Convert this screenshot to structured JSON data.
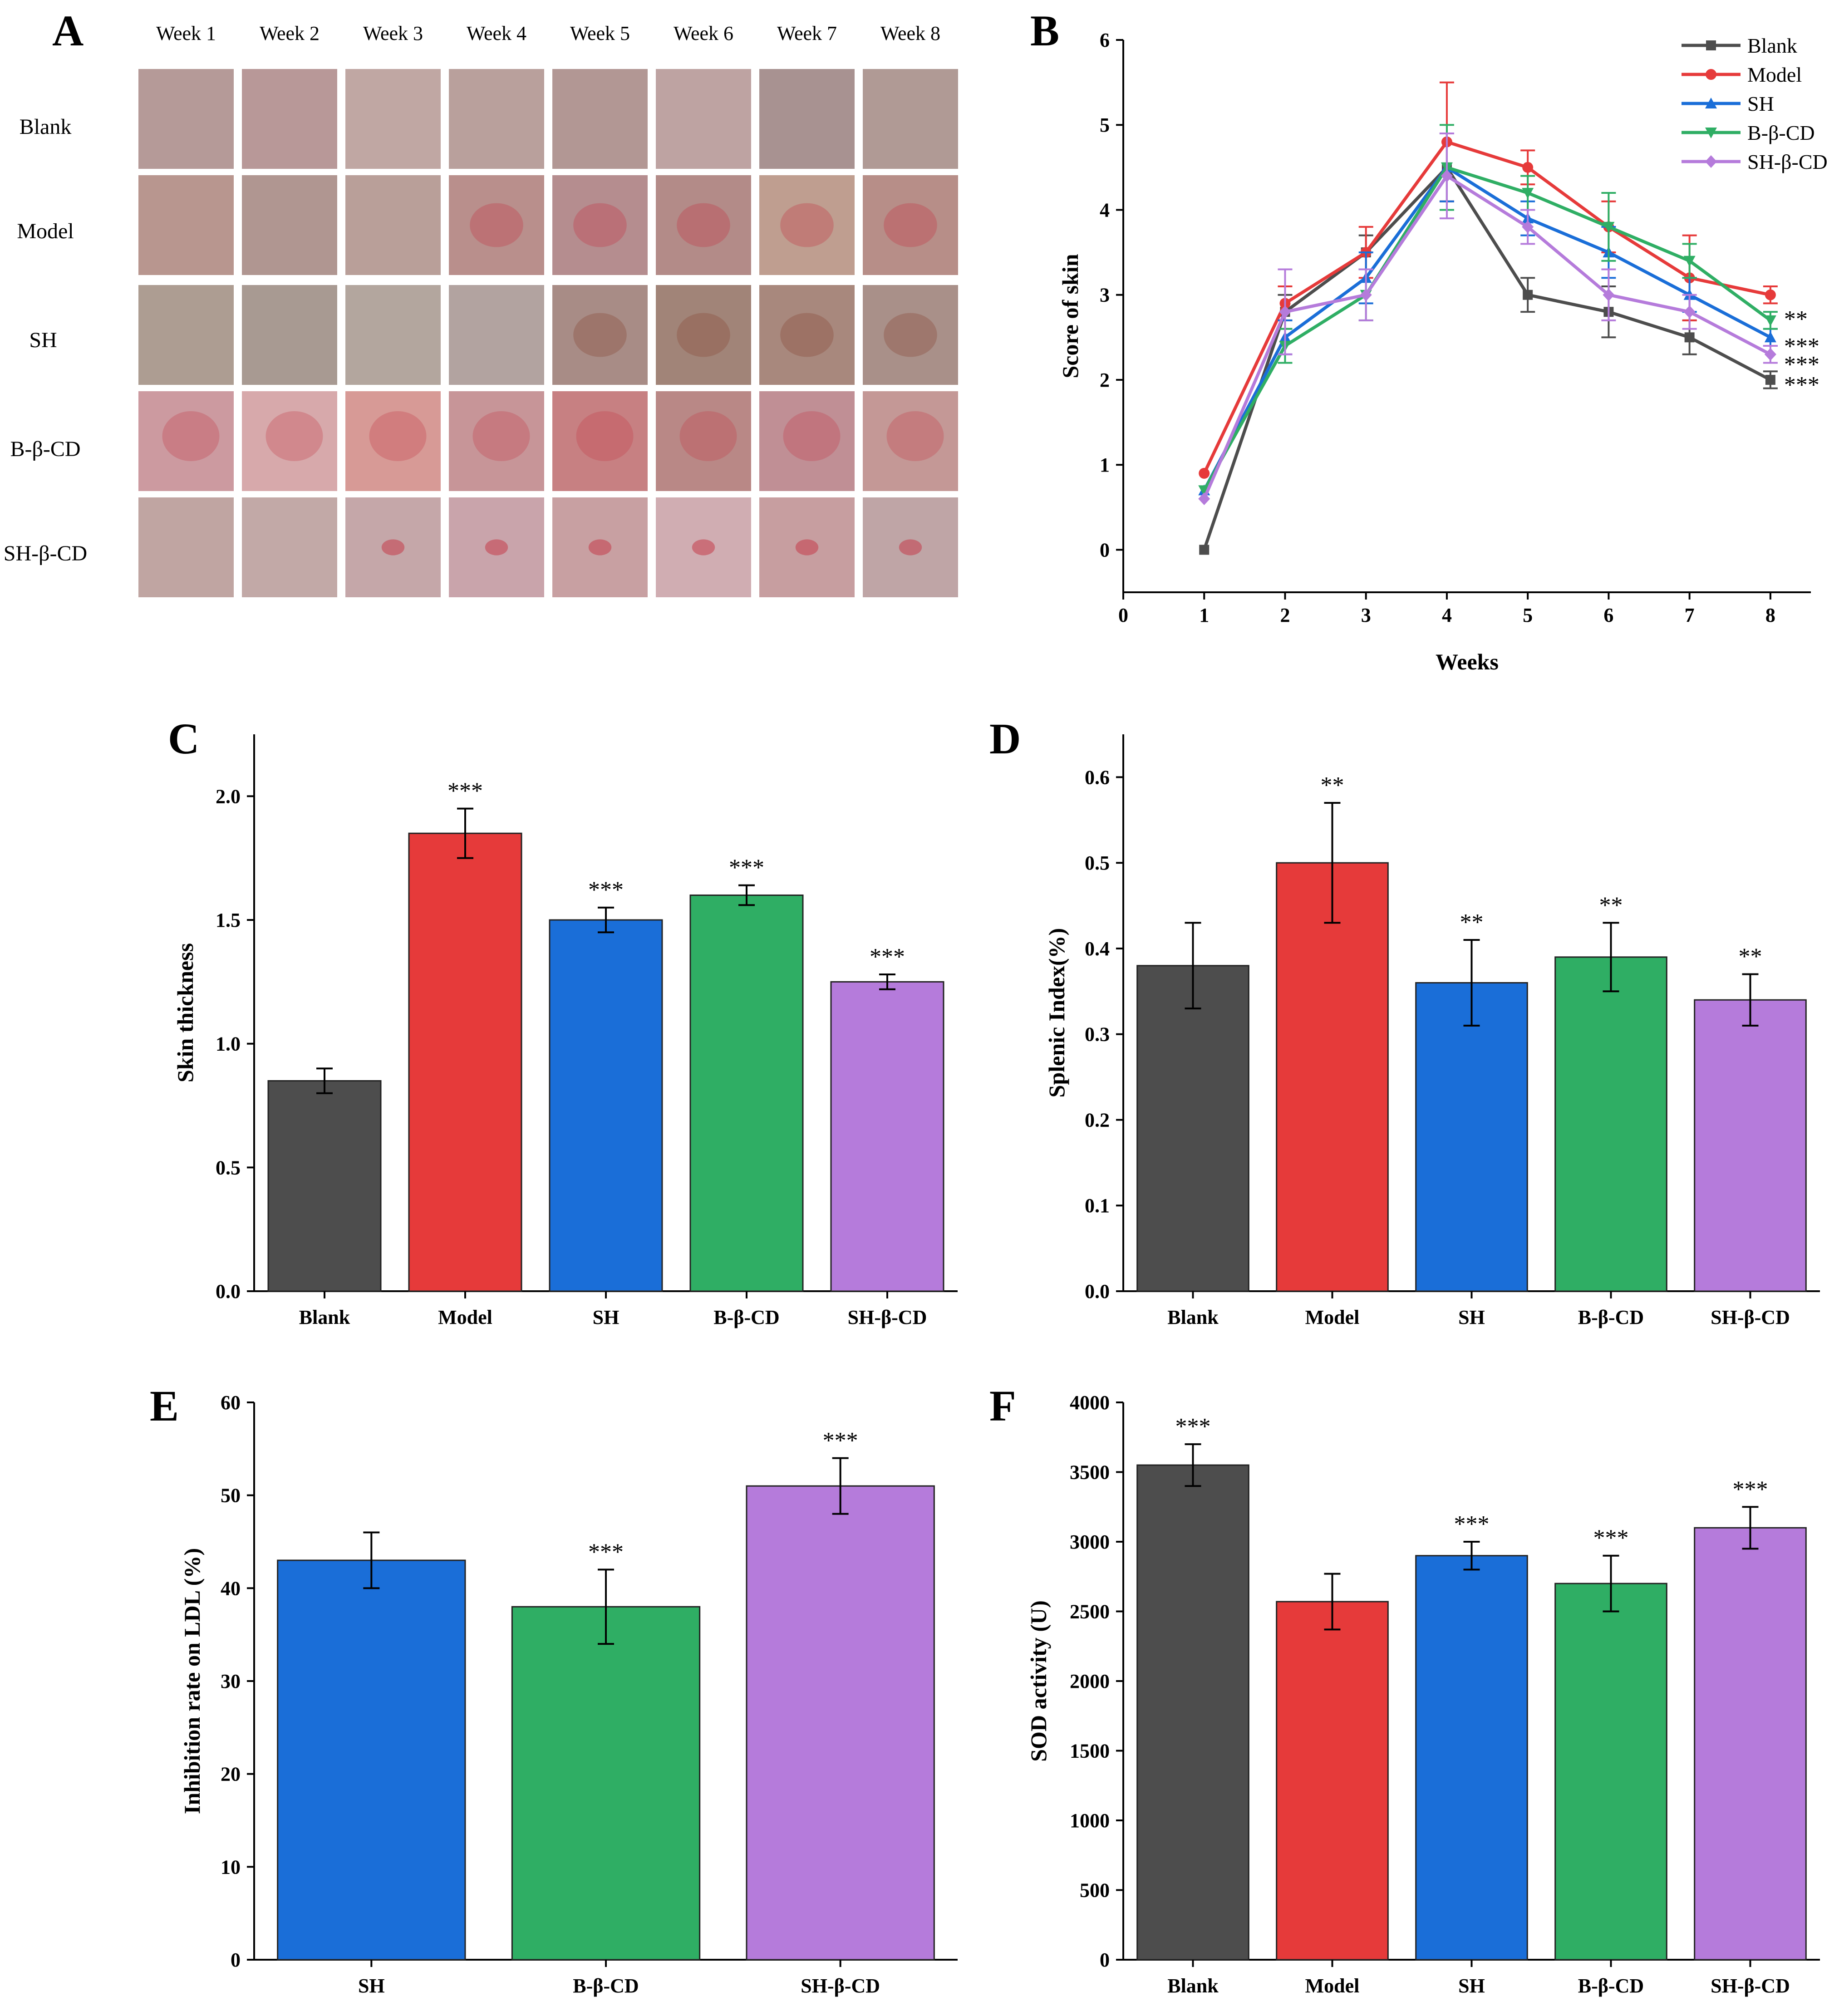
{
  "figure": {
    "panel_letters": [
      "A",
      "B",
      "C",
      "D",
      "E",
      "F"
    ]
  },
  "panel_a": {
    "weeks": [
      "Week 1",
      "Week 2",
      "Week 3",
      "Week 4",
      "Week 5",
      "Week 6",
      "Week 7",
      "Week 8"
    ],
    "groups": [
      "Blank",
      "Model",
      "SH",
      "B-β-CD",
      "SH-β-CD"
    ],
    "tile_colors": [
      [
        "#b59a98",
        "#b89898",
        "#c0a7a3",
        "#b9a09c",
        "#b29794",
        "#bea3a2",
        "#a89291",
        "#b09a95"
      ],
      [
        "#b8968f",
        "#b09691",
        "#b99f99",
        "#b98f8c",
        "#b58d8f",
        "#b38b88",
        "#bf9e90",
        "#b78e88"
      ],
      [
        "#ad9d92",
        "#a89a92",
        "#b3a69e",
        "#b2a3a0",
        "#a88c86",
        "#a18478",
        "#a8887d",
        "#a99089"
      ],
      [
        "#cc9aa0",
        "#d7a9ab",
        "#d79a96",
        "#c79598",
        "#c78082",
        "#b98886",
        "#c08f95",
        "#c49896"
      ],
      [
        "#c0a5a2",
        "#c2a9a7",
        "#c5a7a9",
        "#c9a4ab",
        "#c8a0a2",
        "#d0adb2",
        "#c79ea0",
        "#bfa5a6"
      ]
    ],
    "lesion_colors": [
      "#9a6a58",
      "#c43c4a",
      "#8a4b3a"
    ]
  },
  "chart_data": [
    {
      "id": "B",
      "type": "line",
      "x": [
        1,
        2,
        3,
        4,
        5,
        6,
        7,
        8
      ],
      "xlim": [
        0,
        8.5
      ],
      "ylim": [
        -0.5,
        6
      ],
      "xticks": [
        0,
        1,
        2,
        3,
        4,
        5,
        6,
        7,
        8
      ],
      "yticks": [
        0,
        1,
        2,
        3,
        4,
        5,
        6
      ],
      "xlabel": "Weeks",
      "ylabel": "Score of skin",
      "legend_position": "top-right",
      "series": [
        {
          "name": "Blank",
          "color": "#4d4d4d",
          "marker": "square",
          "values": [
            0,
            2.8,
            3.5,
            4.5,
            3.0,
            2.8,
            2.5,
            2.0
          ],
          "errors": [
            0,
            0.2,
            0.2,
            0.4,
            0.2,
            0.3,
            0.2,
            0.1
          ]
        },
        {
          "name": "Model",
          "color": "#e63a3a",
          "marker": "circle",
          "values": [
            0.9,
            2.9,
            3.5,
            4.8,
            4.5,
            3.8,
            3.2,
            3.0
          ],
          "errors": [
            0,
            0.2,
            0.3,
            0.7,
            0.2,
            0.3,
            0.5,
            0.1
          ]
        },
        {
          "name": "SH",
          "color": "#1a6ed8",
          "marker": "triangle-up",
          "values": [
            0.7,
            2.5,
            3.2,
            4.5,
            3.9,
            3.5,
            3.0,
            2.5
          ],
          "errors": [
            0,
            0.2,
            0.3,
            0.4,
            0.2,
            0.3,
            0.2,
            0.1
          ]
        },
        {
          "name": "B-β-CD",
          "color": "#2fae64",
          "marker": "triangle-down",
          "values": [
            0.7,
            2.4,
            3.0,
            4.5,
            4.2,
            3.8,
            3.4,
            2.7
          ],
          "errors": [
            0,
            0.2,
            0.3,
            0.5,
            0.2,
            0.4,
            0.2,
            0.1
          ]
        },
        {
          "name": "SH-β-CD",
          "color": "#b57bdb",
          "marker": "diamond",
          "values": [
            0.6,
            2.8,
            3.0,
            4.4,
            3.8,
            3.0,
            2.8,
            2.3
          ],
          "errors": [
            0,
            0.5,
            0.3,
            0.5,
            0.2,
            0.3,
            0.2,
            0.1
          ]
        }
      ],
      "annotations": [
        {
          "text": "**",
          "x": 8,
          "y": 2.7
        },
        {
          "text": "***",
          "x": 8,
          "y": 2.4
        },
        {
          "text": "***",
          "x": 8,
          "y": 2.2
        },
        {
          "text": "***",
          "x": 8,
          "y": 1.95
        }
      ]
    },
    {
      "id": "C",
      "type": "bar",
      "categories": [
        "Blank",
        "Model",
        "SH",
        "B-β-CD",
        "SH-β-CD"
      ],
      "values": [
        0.85,
        1.85,
        1.5,
        1.6,
        1.25
      ],
      "errors": [
        0.05,
        0.1,
        0.05,
        0.04,
        0.03
      ],
      "colors": [
        "#4d4d4d",
        "#e63a3a",
        "#1a6ed8",
        "#2fae64",
        "#b57bdb"
      ],
      "significance": [
        "",
        "***",
        "***",
        "***",
        "***"
      ],
      "ylabel": "Skin thickness",
      "xlabel": "",
      "ylim": [
        0,
        2.25
      ],
      "yticks": [
        "0.0",
        "0.5",
        "1.0",
        "1.5",
        "2.0"
      ]
    },
    {
      "id": "D",
      "type": "bar",
      "categories": [
        "Blank",
        "Model",
        "SH",
        "B-β-CD",
        "SH-β-CD"
      ],
      "values": [
        0.38,
        0.5,
        0.36,
        0.39,
        0.34
      ],
      "errors": [
        0.05,
        0.07,
        0.05,
        0.04,
        0.03
      ],
      "colors": [
        "#4d4d4d",
        "#e63a3a",
        "#1a6ed8",
        "#2fae64",
        "#b57bdb"
      ],
      "significance": [
        "",
        "**",
        "**",
        "**",
        "**"
      ],
      "ylabel": "Splenic Index(%)",
      "xlabel": "",
      "ylim": [
        0,
        0.65
      ],
      "yticks": [
        "0.0",
        "0.1",
        "0.2",
        "0.3",
        "0.4",
        "0.5",
        "0.6"
      ]
    },
    {
      "id": "E",
      "type": "bar",
      "categories": [
        "SH",
        "B-β-CD",
        "SH-β-CD"
      ],
      "values": [
        43,
        38,
        51
      ],
      "errors": [
        3,
        4,
        3
      ],
      "colors": [
        "#1a6ed8",
        "#2fae64",
        "#b57bdb"
      ],
      "significance": [
        "",
        "***",
        "***"
      ],
      "ylabel": "Inhibition rate on LDL (%)",
      "xlabel": "",
      "ylim": [
        0,
        60
      ],
      "yticks": [
        "0",
        "10",
        "20",
        "30",
        "40",
        "50",
        "60"
      ]
    },
    {
      "id": "F",
      "type": "bar",
      "categories": [
        "Blank",
        "Model",
        "SH",
        "B-β-CD",
        "SH-β-CD"
      ],
      "values": [
        3550,
        2570,
        2900,
        2700,
        3100
      ],
      "errors": [
        150,
        200,
        100,
        200,
        150
      ],
      "colors": [
        "#4d4d4d",
        "#e63a3a",
        "#1a6ed8",
        "#2fae64",
        "#b57bdb"
      ],
      "significance": [
        "***",
        "",
        "***",
        "***",
        "***"
      ],
      "ylabel": "SOD activity (U)",
      "xlabel": "",
      "ylim": [
        0,
        4000
      ],
      "yticks": [
        "0",
        "500",
        "1000",
        "1500",
        "2000",
        "2500",
        "3000",
        "3500",
        "4000"
      ]
    }
  ]
}
